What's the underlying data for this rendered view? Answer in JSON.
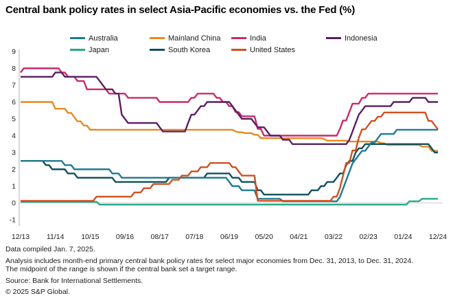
{
  "title": "Central bank policy rates in select Asia-Pacific economies vs. the Fed (%)",
  "chart_data": {
    "type": "line",
    "title": "Central bank policy rates in select Asia-Pacific economies vs. the Fed (%)",
    "unit": "%",
    "frequency": "monthly",
    "start_month": "2013-12",
    "end_month": "2024-12",
    "month_count": 133,
    "interpolation": "rates hold constant between change points; breakpoints are [month_index, rate] with index 0 = Dec 2013",
    "x_axis": {
      "tick_labels": [
        "12/13",
        "11/14",
        "10/15",
        "09/16",
        "08/17",
        "07/18",
        "06/19",
        "05/20",
        "04/21",
        "03/22",
        "02/23",
        "01/24",
        "12/24"
      ],
      "tick_month_indices": [
        0,
        11,
        22,
        33,
        44,
        55,
        66,
        77,
        88,
        99,
        110,
        121,
        132
      ]
    },
    "y_axis": {
      "min": -1,
      "max": 9,
      "ticks": [
        9,
        8,
        7,
        6,
        5,
        4,
        3,
        2,
        1,
        0,
        -1
      ],
      "zero_gridline": true
    },
    "legend_position": "top",
    "series": [
      {
        "name": "Australia",
        "color": "#1d7a8f",
        "breakpoints": [
          [
            0,
            2.5
          ],
          [
            14,
            2.25
          ],
          [
            17,
            2.0
          ],
          [
            29,
            1.75
          ],
          [
            32,
            1.5
          ],
          [
            66,
            1.25
          ],
          [
            67,
            1.0
          ],
          [
            70,
            0.75
          ],
          [
            75,
            0.25
          ],
          [
            83,
            0.1
          ],
          [
            101,
            0.35
          ],
          [
            102,
            0.85
          ],
          [
            103,
            1.35
          ],
          [
            104,
            1.85
          ],
          [
            105,
            2.35
          ],
          [
            106,
            2.6
          ],
          [
            107,
            2.85
          ],
          [
            108,
            3.1
          ],
          [
            110,
            3.35
          ],
          [
            111,
            3.6
          ],
          [
            113,
            3.85
          ],
          [
            114,
            4.1
          ],
          [
            119,
            4.35
          ]
        ]
      },
      {
        "name": "Mainland China",
        "color": "#e8871e",
        "breakpoints": [
          [
            0,
            6.0
          ],
          [
            11,
            5.6
          ],
          [
            15,
            5.35
          ],
          [
            17,
            5.1
          ],
          [
            18,
            4.85
          ],
          [
            20,
            4.6
          ],
          [
            22,
            4.35
          ],
          [
            68,
            4.25
          ],
          [
            69,
            4.2
          ],
          [
            71,
            4.15
          ],
          [
            74,
            4.05
          ],
          [
            76,
            3.85
          ],
          [
            96,
            3.8
          ],
          [
            97,
            3.7
          ],
          [
            104,
            3.65
          ],
          [
            114,
            3.55
          ],
          [
            116,
            3.45
          ],
          [
            127,
            3.35
          ],
          [
            130,
            3.1
          ]
        ]
      },
      {
        "name": "India",
        "color": "#c92a67",
        "breakpoints": [
          [
            0,
            7.75
          ],
          [
            1,
            8.0
          ],
          [
            13,
            7.75
          ],
          [
            15,
            7.5
          ],
          [
            18,
            7.25
          ],
          [
            21,
            6.75
          ],
          [
            28,
            6.5
          ],
          [
            34,
            6.25
          ],
          [
            44,
            6.0
          ],
          [
            54,
            6.25
          ],
          [
            56,
            6.5
          ],
          [
            62,
            6.25
          ],
          [
            64,
            6.0
          ],
          [
            66,
            5.75
          ],
          [
            68,
            5.4
          ],
          [
            70,
            5.15
          ],
          [
            75,
            4.4
          ],
          [
            77,
            4.0
          ],
          [
            101,
            4.4
          ],
          [
            102,
            4.9
          ],
          [
            104,
            5.4
          ],
          [
            105,
            5.9
          ],
          [
            108,
            6.25
          ],
          [
            110,
            6.5
          ]
        ]
      },
      {
        "name": "Indonesia",
        "color": "#591e63",
        "breakpoints": [
          [
            0,
            7.5
          ],
          [
            11,
            7.75
          ],
          [
            14,
            7.5
          ],
          [
            25,
            7.25
          ],
          [
            26,
            7.0
          ],
          [
            27,
            6.75
          ],
          [
            30,
            6.5
          ],
          [
            32,
            5.25
          ],
          [
            33,
            5.0
          ],
          [
            34,
            4.75
          ],
          [
            44,
            4.5
          ],
          [
            45,
            4.25
          ],
          [
            53,
            4.75
          ],
          [
            54,
            5.25
          ],
          [
            56,
            5.5
          ],
          [
            57,
            5.75
          ],
          [
            59,
            6.0
          ],
          [
            67,
            5.75
          ],
          [
            68,
            5.5
          ],
          [
            69,
            5.25
          ],
          [
            70,
            5.0
          ],
          [
            74,
            4.75
          ],
          [
            75,
            4.5
          ],
          [
            78,
            4.25
          ],
          [
            79,
            4.0
          ],
          [
            83,
            3.75
          ],
          [
            86,
            3.5
          ],
          [
            104,
            3.75
          ],
          [
            105,
            4.25
          ],
          [
            106,
            4.75
          ],
          [
            107,
            5.25
          ],
          [
            108,
            5.5
          ],
          [
            109,
            5.75
          ],
          [
            118,
            6.0
          ],
          [
            124,
            6.25
          ],
          [
            129,
            6.0
          ]
        ]
      },
      {
        "name": "Japan",
        "color": "#26a785",
        "breakpoints": [
          [
            0,
            0.07
          ],
          [
            25,
            -0.1
          ],
          [
            123,
            0.1
          ],
          [
            127,
            0.25
          ]
        ]
      },
      {
        "name": "South Korea",
        "color": "#0f4f5c",
        "breakpoints": [
          [
            0,
            2.5
          ],
          [
            8,
            2.25
          ],
          [
            10,
            2.0
          ],
          [
            15,
            1.75
          ],
          [
            18,
            1.5
          ],
          [
            30,
            1.25
          ],
          [
            47,
            1.5
          ],
          [
            59,
            1.75
          ],
          [
            67,
            1.5
          ],
          [
            70,
            1.25
          ],
          [
            75,
            0.75
          ],
          [
            77,
            0.5
          ],
          [
            92,
            0.75
          ],
          [
            95,
            1.0
          ],
          [
            97,
            1.25
          ],
          [
            100,
            1.5
          ],
          [
            101,
            1.75
          ],
          [
            103,
            2.25
          ],
          [
            104,
            2.5
          ],
          [
            106,
            3.0
          ],
          [
            107,
            3.25
          ],
          [
            109,
            3.5
          ],
          [
            130,
            3.25
          ],
          [
            131,
            3.0
          ]
        ]
      },
      {
        "name": "United States",
        "color": "#d04f1f",
        "breakpoints": [
          [
            0,
            0.125
          ],
          [
            24,
            0.375
          ],
          [
            36,
            0.625
          ],
          [
            39,
            0.875
          ],
          [
            42,
            1.125
          ],
          [
            48,
            1.375
          ],
          [
            51,
            1.625
          ],
          [
            54,
            1.875
          ],
          [
            57,
            2.125
          ],
          [
            60,
            2.375
          ],
          [
            67,
            2.125
          ],
          [
            69,
            1.875
          ],
          [
            70,
            1.625
          ],
          [
            75,
            0.125
          ],
          [
            99,
            0.375
          ],
          [
            101,
            0.875
          ],
          [
            102,
            1.625
          ],
          [
            103,
            2.375
          ],
          [
            105,
            3.125
          ],
          [
            107,
            3.875
          ],
          [
            108,
            4.375
          ],
          [
            110,
            4.625
          ],
          [
            111,
            4.875
          ],
          [
            113,
            5.125
          ],
          [
            115,
            5.375
          ],
          [
            129,
            4.875
          ],
          [
            131,
            4.625
          ],
          [
            132,
            4.375
          ]
        ]
      }
    ],
    "colors": {
      "axis_line": "#b0b0b0",
      "zero_gridline": "#cdcdcd",
      "text": "#1a1a1a"
    }
  },
  "footer": {
    "compiled": "Data compiled Jan. 7, 2025.",
    "analysis_line1": "Analysis includes month-end primary central bank policy rates for select major economies from Dec. 31, 2013, to Dec. 31, 2024.",
    "analysis_line2": "The midpoint of the range is shown if the central bank set a target range.",
    "source": "Source: Bank for International Settlements.",
    "copyright": "© 2025 S&P Global."
  }
}
